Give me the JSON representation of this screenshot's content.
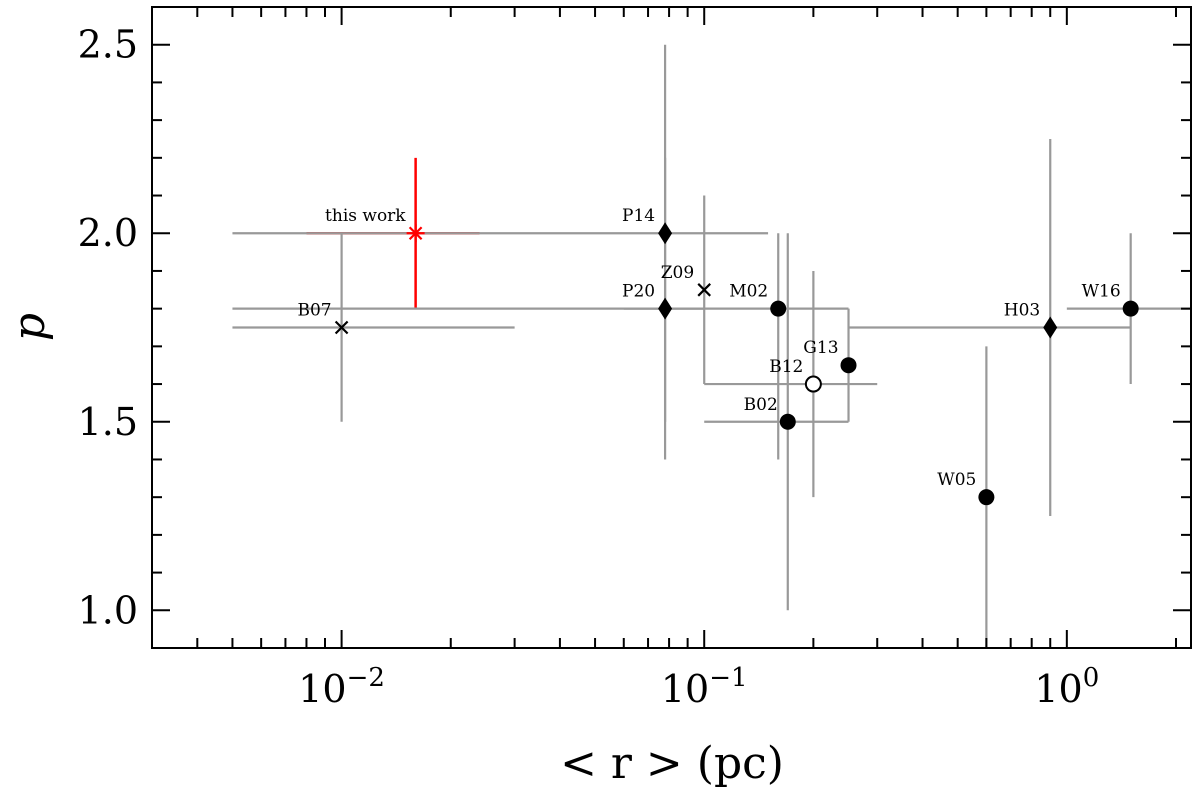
{
  "chart_data": {
    "type": "scatter",
    "title": "",
    "xlabel": "< r > (pc)",
    "ylabel": "p",
    "xscale": "log",
    "xlim": [
      0.003,
      2.2
    ],
    "ylim": [
      0.9,
      2.6
    ],
    "x_ticks": [
      {
        "value": 0.01,
        "base": "10",
        "exp": "−2"
      },
      {
        "value": 0.1,
        "base": "10",
        "exp": "−1"
      },
      {
        "value": 1,
        "base": "10",
        "exp": "0"
      }
    ],
    "y_ticks": [
      {
        "value": 1.0,
        "label": "1.0"
      },
      {
        "value": 1.5,
        "label": "1.5"
      },
      {
        "value": 2.0,
        "label": "2.0"
      },
      {
        "value": 2.5,
        "label": "2.5"
      }
    ],
    "grid": false,
    "colors": {
      "highlight": "#ff0000",
      "errorbar": "#999999",
      "marker": "#000000"
    },
    "points": [
      {
        "label": "this work",
        "x": 0.016,
        "y": 2.0,
        "xerr": [
          0.008,
          0.024
        ],
        "yerr": [
          1.8,
          2.2
        ],
        "marker": "cross-red"
      },
      {
        "label": "B07",
        "x": 0.01,
        "y": 1.75,
        "xerr": [
          0.005,
          0.03
        ],
        "yerr": [
          1.5,
          2.0
        ],
        "marker": "x"
      },
      {
        "label": "P14",
        "x": 0.078,
        "y": 2.0,
        "xerr": [
          0.005,
          0.15
        ],
        "yerr": [
          1.5,
          2.5
        ],
        "marker": "diamond"
      },
      {
        "label": "P20",
        "x": 0.078,
        "y": 1.8,
        "xerr": [
          0.06,
          0.1
        ],
        "yerr": [
          1.4,
          2.2
        ],
        "marker": "diamond"
      },
      {
        "label": "Z09",
        "x": 0.1,
        "y": 1.85,
        "xerr": [
          0.1,
          0.1
        ],
        "yerr": [
          1.6,
          2.1
        ],
        "marker": "x"
      },
      {
        "label": "M02",
        "x": 0.16,
        "y": 1.8,
        "xerr": [
          0.005,
          0.25
        ],
        "yerr": [
          1.4,
          2.0
        ],
        "marker": "circle"
      },
      {
        "label": "B02",
        "x": 0.17,
        "y": 1.5,
        "xerr": [
          0.1,
          0.25
        ],
        "yerr": [
          1.0,
          2.0
        ],
        "marker": "circle"
      },
      {
        "label": "B12",
        "x": 0.2,
        "y": 1.6,
        "xerr": [
          0.1,
          0.3
        ],
        "yerr": [
          1.3,
          1.9
        ],
        "marker": "circle-open"
      },
      {
        "label": "G13",
        "x": 0.25,
        "y": 1.65,
        "xerr": [
          0.25,
          0.25
        ],
        "yerr": [
          1.5,
          1.8
        ],
        "marker": "circle"
      },
      {
        "label": "W05",
        "x": 0.6,
        "y": 1.3,
        "xerr": [
          0.6,
          0.6
        ],
        "yerr": [
          0.9,
          1.7
        ],
        "marker": "circle"
      },
      {
        "label": "H03",
        "x": 0.9,
        "y": 1.75,
        "xerr": [
          0.25,
          1.5
        ],
        "yerr": [
          1.25,
          2.25
        ],
        "marker": "diamond"
      },
      {
        "label": "W16",
        "x": 1.5,
        "y": 1.8,
        "xerr": [
          1.0,
          2.2
        ],
        "yerr": [
          1.6,
          2.0
        ],
        "marker": "circle"
      }
    ]
  }
}
